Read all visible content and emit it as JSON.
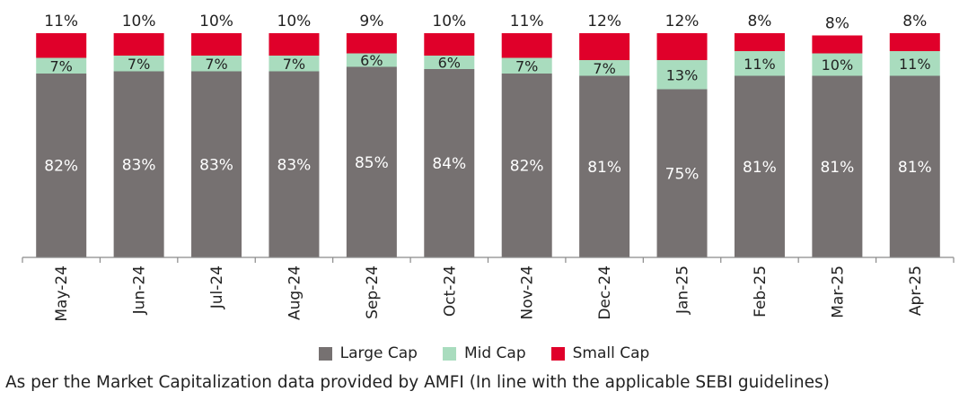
{
  "chart_data": {
    "type": "bar",
    "stacked": true,
    "categories": [
      "May-24",
      "Jun-24",
      "Jul-24",
      "Aug-24",
      "Sep-24",
      "Oct-24",
      "Nov-24",
      "Dec-24",
      "Jan-25",
      "Feb-25",
      "Mar-25",
      "Apr-25"
    ],
    "series": [
      {
        "name": "Large Cap",
        "color": "#767171",
        "values": [
          82,
          83,
          83,
          83,
          85,
          84,
          82,
          81,
          75,
          81,
          81,
          81
        ]
      },
      {
        "name": "Mid Cap",
        "color": "#a9dcbe",
        "values": [
          7,
          7,
          7,
          7,
          6,
          6,
          7,
          7,
          13,
          11,
          10,
          11
        ]
      },
      {
        "name": "Small Cap",
        "color": "#e0002a",
        "values": [
          11,
          10,
          10,
          10,
          9,
          10,
          11,
          12,
          12,
          8,
          8,
          8
        ]
      }
    ],
    "value_suffix": "%",
    "ylim": [
      0,
      100
    ],
    "grid": false,
    "legend_position": "bottom"
  },
  "legend": [
    {
      "label": "Large Cap",
      "color": "#767171"
    },
    {
      "label": "Mid Cap",
      "color": "#a9dcbe"
    },
    {
      "label": "Small Cap",
      "color": "#e0002a"
    }
  ],
  "footnote": "As per the Market Capitalization data provided by AMFI (In line with the applicable SEBI guidelines)"
}
